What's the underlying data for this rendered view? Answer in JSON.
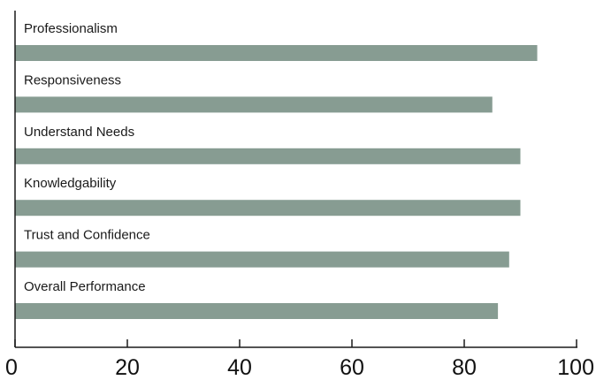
{
  "chart_data": {
    "type": "bar",
    "orientation": "horizontal",
    "categories": [
      "Professionalism",
      "Responsiveness",
      "Understand Needs",
      "Knowledgability",
      "Trust and Confidence",
      "Overall Performance"
    ],
    "values": [
      93,
      85,
      90,
      90,
      88,
      86
    ],
    "x_ticks": [
      "0",
      "20",
      "40",
      "60",
      "80",
      "100"
    ],
    "xlim": [
      0,
      100
    ],
    "title": "",
    "xlabel": "",
    "ylabel": "",
    "grid": false,
    "legend": "none",
    "bar_color": "#879c92",
    "axis_color": "#1a1a1a"
  }
}
